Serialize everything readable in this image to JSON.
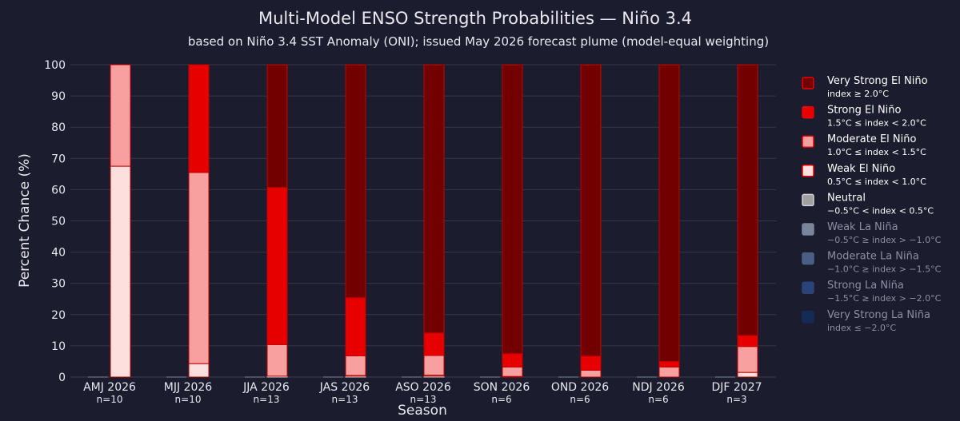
{
  "chart_data": {
    "type": "bar",
    "title": "Multi-Model ENSO Strength Probabilities — Niño 3.4",
    "subtitle": "based on Niño 3.4 SST Anomaly (ONI); issued May 2026 forecast plume (model-equal weighting)",
    "xlabel": "Season",
    "ylabel": "Percent Chance (%)",
    "ylim": [
      0,
      100
    ],
    "yticks": [
      0,
      10,
      20,
      30,
      40,
      50,
      60,
      70,
      80,
      90,
      100
    ],
    "grid": true,
    "legend_position": "right",
    "stacked": true,
    "categories": [
      "AMJ 2026",
      "MJJ 2026",
      "JJA 2026",
      "JAS 2026",
      "ASO 2026",
      "SON 2026",
      "OND 2026",
      "NDJ 2026",
      "DJF 2027"
    ],
    "category_counts": [
      "n=10",
      "n=10",
      "n=13",
      "n=13",
      "n=13",
      "n=6",
      "n=6",
      "n=6",
      "n=3"
    ],
    "la_nina_stack": [
      {
        "name": "Weak La Niña",
        "sub": "−0.5°C ≥ index > −1.0°C",
        "color": "#7a8599",
        "values": [
          0,
          0,
          0,
          0,
          0,
          0,
          0,
          0,
          0
        ]
      },
      {
        "name": "Moderate La Niña",
        "sub": "−1.0°C ≥ index > −1.5°C",
        "color": "#4a5f86",
        "values": [
          0,
          0,
          0,
          0,
          0,
          0,
          0,
          0,
          0
        ]
      },
      {
        "name": "Strong La Niña",
        "sub": "−1.5°C ≥ index > −2.0°C",
        "color": "#2b4478",
        "values": [
          0,
          0,
          0,
          0,
          0,
          0,
          0,
          0,
          0
        ]
      },
      {
        "name": "Very Strong La Niña",
        "sub": "index ≤ −2.0°C",
        "color": "#142a57",
        "values": [
          0,
          0,
          0,
          0,
          0,
          0,
          0,
          0,
          0
        ]
      }
    ],
    "series": [
      {
        "name": "Neutral",
        "sub": "−0.5°C < index < 0.5°C",
        "color": "#a0a0a0",
        "values": [
          0,
          0,
          0.3,
          0.3,
          0.3,
          0,
          0,
          0,
          0
        ]
      },
      {
        "name": "Weak El Niño",
        "sub": "0.5°C ≤ index < 1.0°C",
        "color": "#fde0dd",
        "values": [
          67.5,
          4.3,
          0,
          0.2,
          0.3,
          0.2,
          0,
          0,
          1.5
        ]
      },
      {
        "name": "Moderate El Niño",
        "sub": "1.0°C ≤ index < 1.5°C",
        "color": "#f8a0a0",
        "values": [
          32.5,
          61.2,
          10.1,
          6.3,
          6.3,
          3.0,
          2.2,
          3.2,
          8.3
        ]
      },
      {
        "name": "Strong El Niño",
        "sub": "1.5°C ≤ index < 2.0°C",
        "color": "#e60000",
        "values": [
          0,
          34.5,
          50.3,
          18.6,
          7.2,
          4.3,
          4.5,
          1.8,
          3.5
        ]
      },
      {
        "name": "Very Strong El Niño",
        "sub": "index ≥ 2.0°C",
        "color": "#730000",
        "values": [
          0,
          0,
          39.3,
          74.6,
          85.9,
          92.5,
          93.3,
          95.0,
          86.7
        ]
      }
    ],
    "legend": [
      {
        "name": "Very Strong El Niño",
        "sub": "index ≥ 2.0°C",
        "color": "#730000",
        "border": "#e60000",
        "active": true
      },
      {
        "name": "Strong El Niño",
        "sub": "1.5°C ≤ index < 2.0°C",
        "color": "#e60000",
        "border": "#e60000",
        "active": true
      },
      {
        "name": "Moderate El Niño",
        "sub": "1.0°C ≤ index < 1.5°C",
        "color": "#f8a0a0",
        "border": "#e60000",
        "active": true
      },
      {
        "name": "Weak El Niño",
        "sub": "0.5°C ≤ index < 1.0°C",
        "color": "#fde0dd",
        "border": "#e60000",
        "active": true
      },
      {
        "name": "Neutral",
        "sub": "−0.5°C < index < 0.5°C",
        "color": "#a0a0a0",
        "border": "#d0d0d0",
        "active": true
      },
      {
        "name": "Weak La Niña",
        "sub": "−0.5°C ≥ index > −1.0°C",
        "color": "#7a8599",
        "border": "#7a8599",
        "active": false
      },
      {
        "name": "Moderate La Niña",
        "sub": "−1.0°C ≥ index > −1.5°C",
        "color": "#4a5f86",
        "border": "#4a5f86",
        "active": false
      },
      {
        "name": "Strong La Niña",
        "sub": "−1.5°C ≥ index > −2.0°C",
        "color": "#2b4478",
        "border": "#2b4478",
        "active": false
      },
      {
        "name": "Very Strong La Niña",
        "sub": "index ≤ −2.0°C",
        "color": "#142a57",
        "border": "#142a57",
        "active": false
      }
    ]
  }
}
